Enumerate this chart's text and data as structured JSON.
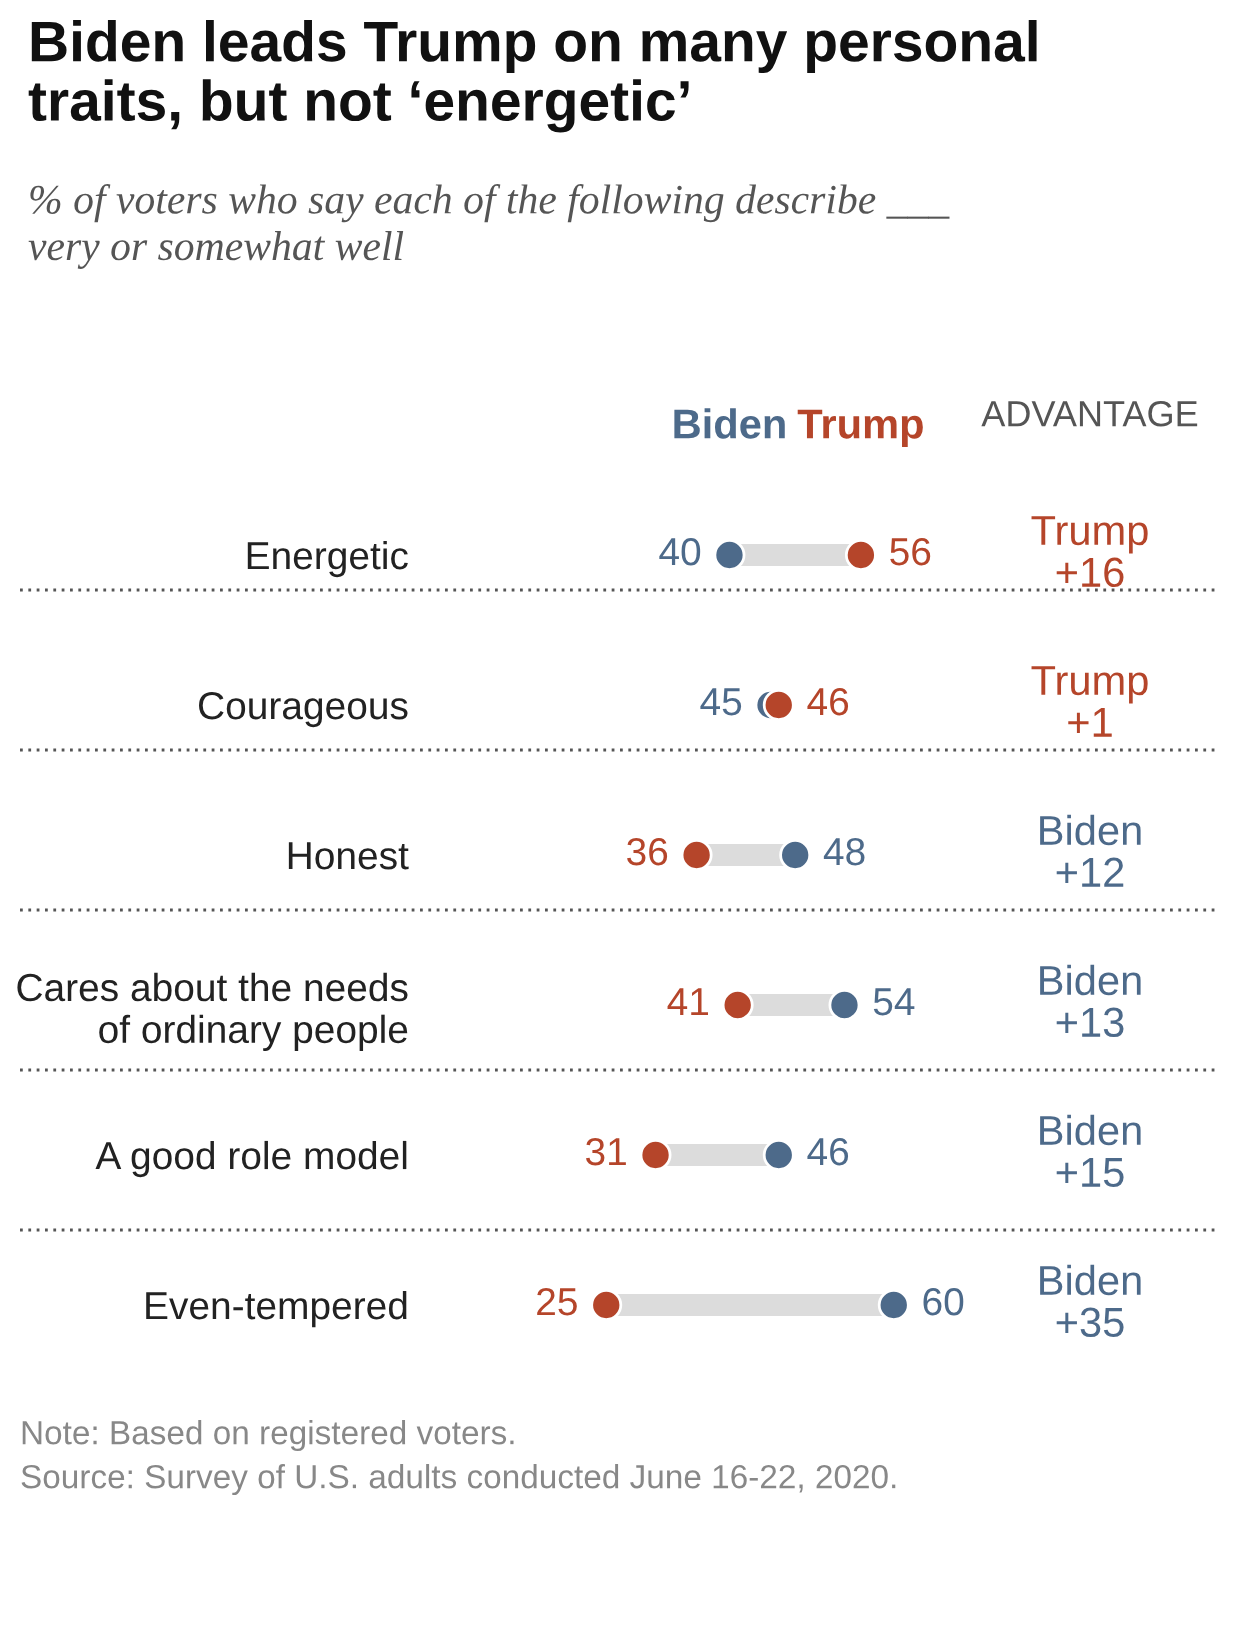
{
  "chart_data": {
    "type": "scatter",
    "title": "Biden leads Trump on many personal\ntraits, but not ‘energetic’",
    "subtitle": "% of voters who say each of the following describe ___\nvery or somewhat well",
    "categories": [
      "Energetic",
      "Courageous",
      "Honest",
      "Cares about the needs\nof ordinary people",
      "A good role model",
      "Even-tempered"
    ],
    "series": [
      {
        "name": "Biden",
        "color": "#4d6a8a",
        "values": [
          40,
          45,
          48,
          54,
          46,
          60
        ]
      },
      {
        "name": "Trump",
        "color": "#b5452a",
        "values": [
          56,
          46,
          36,
          41,
          31,
          25
        ]
      }
    ],
    "data_labels": true,
    "orientation": "horizontal",
    "marker": "circle",
    "tick_labels": "y",
    "annotations": [
      "ADVANTAGE",
      "Trump\n+16",
      "Trump\n+1",
      "Biden\n+12",
      "Biden\n+13",
      "Biden\n+15",
      "Biden\n+35",
      "Note: Based on registered voters.",
      "Source: Survey of U.S. adults conducted June 16-22, 2020."
    ]
  }
}
